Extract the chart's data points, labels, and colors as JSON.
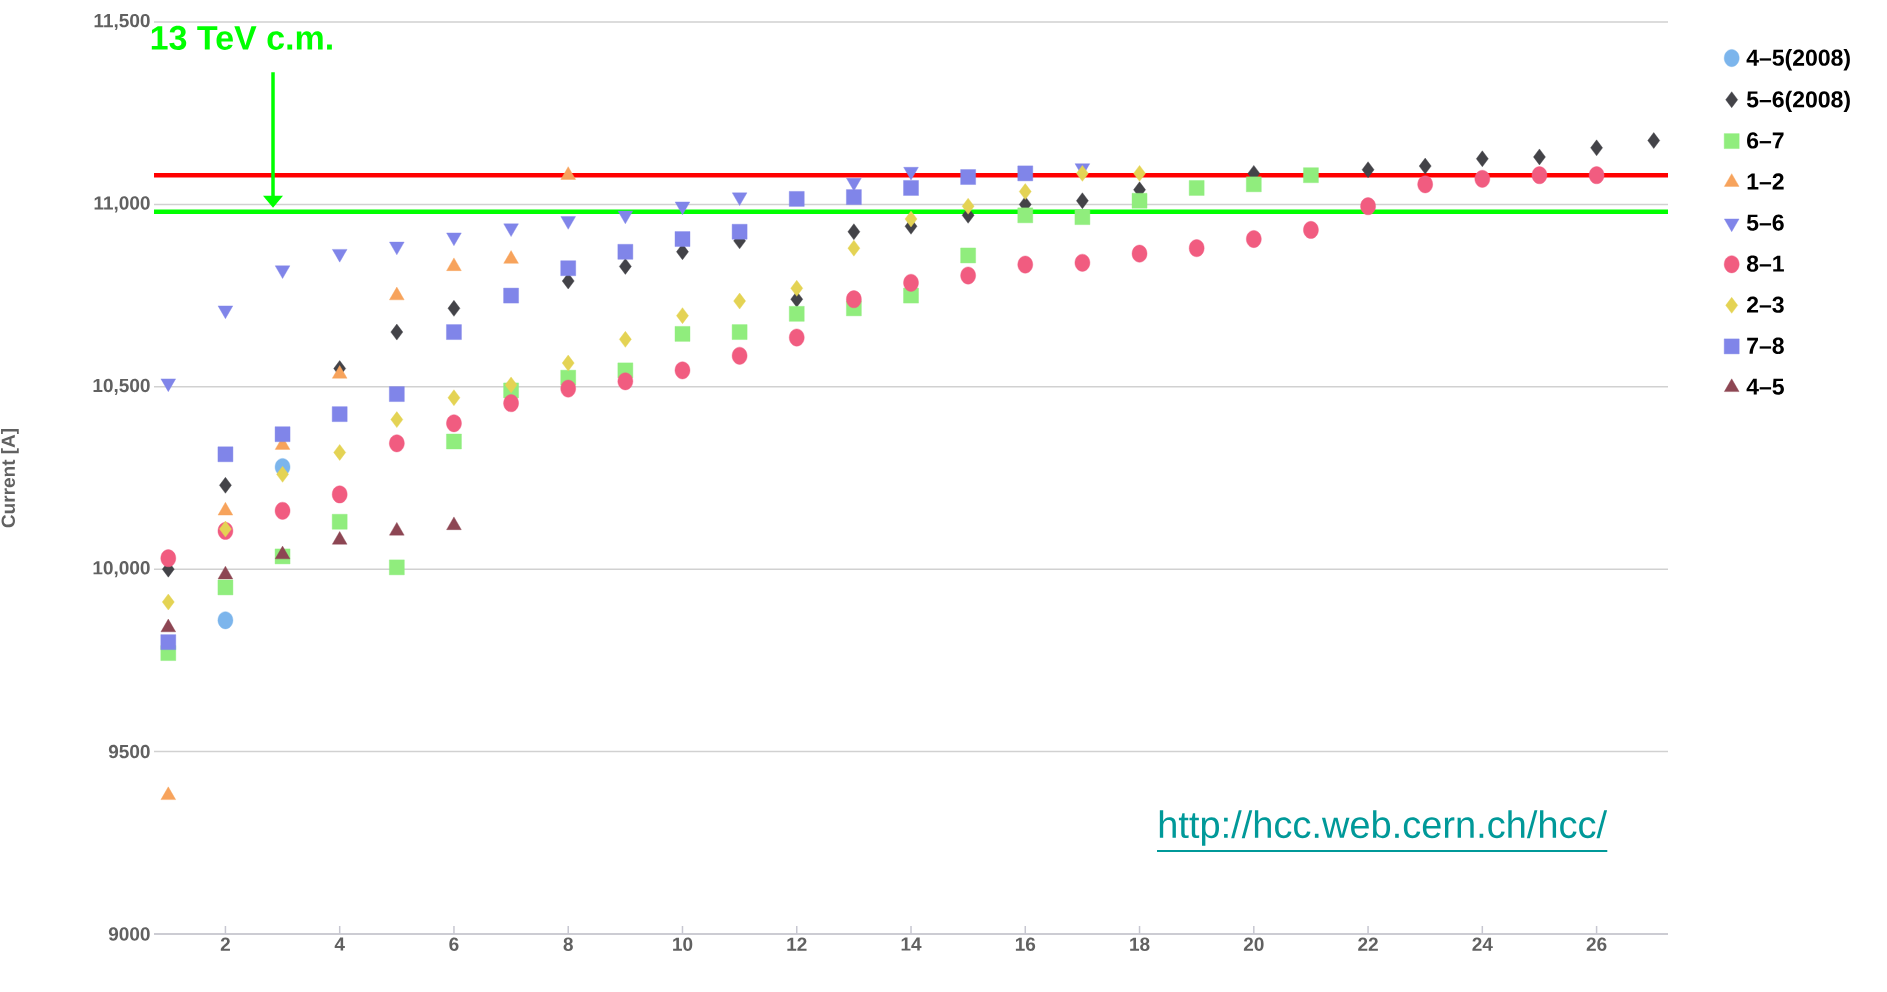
{
  "chart_data": {
    "type": "scatter",
    "ylabel": "Current [A]",
    "xlim": [
      0.75,
      27.25
    ],
    "xticks": [
      2,
      4,
      6,
      8,
      10,
      12,
      14,
      16,
      18,
      20,
      22,
      24,
      26
    ],
    "ylim": [
      9000,
      11500
    ],
    "yticks": [
      9000,
      9500,
      {
        "value": 10000,
        "label": "10,000"
      },
      {
        "value": 10500,
        "label": "10,500"
      },
      {
        "value": 11000,
        "label": "11,000"
      },
      {
        "value": 11500,
        "label": "11,500"
      }
    ],
    "grid": "y",
    "legend": "right",
    "series": [
      {
        "name": "4–5(2008)",
        "color": "#7cb5ec",
        "marker": "circle",
        "x": [
          2,
          3
        ],
        "values": [
          9860,
          10280
        ]
      },
      {
        "name": "5–6(2008)",
        "color": "#434348",
        "marker": "diamond",
        "x": [
          1,
          2,
          3,
          4,
          5,
          6,
          7,
          8,
          9,
          10,
          11,
          12,
          13,
          14,
          15,
          16,
          17,
          18,
          19,
          20,
          21,
          22,
          23,
          24,
          25,
          26,
          27
        ],
        "values": [
          10000,
          10230,
          null,
          10550,
          10650,
          10715,
          null,
          10790,
          10830,
          10870,
          10900,
          10740,
          10925,
          10940,
          10970,
          11000,
          11010,
          11040,
          null,
          11085,
          null,
          11095,
          11105,
          11125,
          11130,
          11155,
          11175
        ]
      },
      {
        "name": "6–7",
        "color": "#90ed7d",
        "marker": "square",
        "x": [
          1,
          2,
          3,
          4,
          5,
          6,
          7,
          8,
          9,
          10,
          11,
          12,
          13,
          14,
          15,
          16,
          17,
          18,
          19,
          20,
          21
        ],
        "values": [
          9770,
          9950,
          10035,
          10130,
          10005,
          10350,
          10490,
          10525,
          10545,
          10645,
          10650,
          10700,
          10715,
          10750,
          10860,
          10970,
          10965,
          11010,
          11045,
          11055,
          11080
        ]
      },
      {
        "name": "1–2",
        "color": "#f7a35c",
        "marker": "triangle",
        "x": [
          1,
          2,
          3,
          4,
          5,
          6,
          7,
          8
        ],
        "values": [
          9380,
          10160,
          10340,
          10535,
          10750,
          10830,
          10850,
          11080
        ]
      },
      {
        "name": "5–6",
        "color": "#8085e9",
        "marker": "triangle-down",
        "x": [
          1,
          2,
          3,
          4,
          5,
          6,
          7,
          8,
          9,
          10,
          11,
          12,
          13,
          14,
          15,
          16,
          17
        ],
        "values": [
          10510,
          10710,
          10820,
          10865,
          10885,
          10910,
          10935,
          10955,
          10970,
          10995,
          11020,
          null,
          11060,
          11090,
          null,
          null,
          11100
        ]
      },
      {
        "name": "8–1",
        "color": "#f15c80",
        "marker": "circle",
        "x": [
          1,
          2,
          3,
          4,
          5,
          6,
          7,
          8,
          9,
          10,
          11,
          12,
          13,
          14,
          15,
          16,
          17,
          18,
          19,
          20,
          21,
          22,
          23,
          24,
          25,
          26
        ],
        "values": [
          10030,
          10105,
          10160,
          10205,
          10345,
          10400,
          10455,
          10495,
          10515,
          10545,
          10585,
          10635,
          10740,
          10785,
          10805,
          10835,
          10840,
          10865,
          10880,
          10905,
          10930,
          10995,
          11055,
          11070,
          11080,
          11080
        ]
      },
      {
        "name": "2–3",
        "color": "#e4d354",
        "marker": "diamond",
        "x": [
          1,
          2,
          3,
          4,
          5,
          6,
          7,
          8,
          9,
          10,
          11,
          12,
          13,
          14,
          15,
          16,
          17,
          18
        ],
        "values": [
          9910,
          10110,
          10260,
          10320,
          10410,
          10470,
          10505,
          10565,
          10630,
          10695,
          10735,
          10770,
          10880,
          10960,
          10995,
          11035,
          11085,
          11085
        ]
      },
      {
        "name": "7–8",
        "color": "#8085e9",
        "marker": "square",
        "x": [
          1,
          2,
          3,
          4,
          5,
          6,
          7,
          8,
          9,
          10,
          11,
          12,
          13,
          14,
          15,
          16
        ],
        "values": [
          9800,
          10315,
          10370,
          10425,
          10480,
          10650,
          10750,
          10825,
          10870,
          10905,
          10925,
          11015,
          11020,
          11045,
          11075,
          11085
        ]
      },
      {
        "name": "4–5",
        "color": "#8d4653",
        "marker": "triangle",
        "x": [
          1,
          2,
          3,
          4,
          5,
          6
        ],
        "values": [
          9840,
          9985,
          10040,
          10080,
          10105,
          10120
        ]
      }
    ],
    "ref_lines": [
      {
        "axis": "y",
        "value": 11080,
        "color": "#ff0000"
      },
      {
        "axis": "y",
        "value": 10980,
        "color": "#00ff00",
        "label": "13 TeV c.m."
      }
    ],
    "annotations": [
      "http://hcc.web.cern.ch/hcc/"
    ]
  }
}
